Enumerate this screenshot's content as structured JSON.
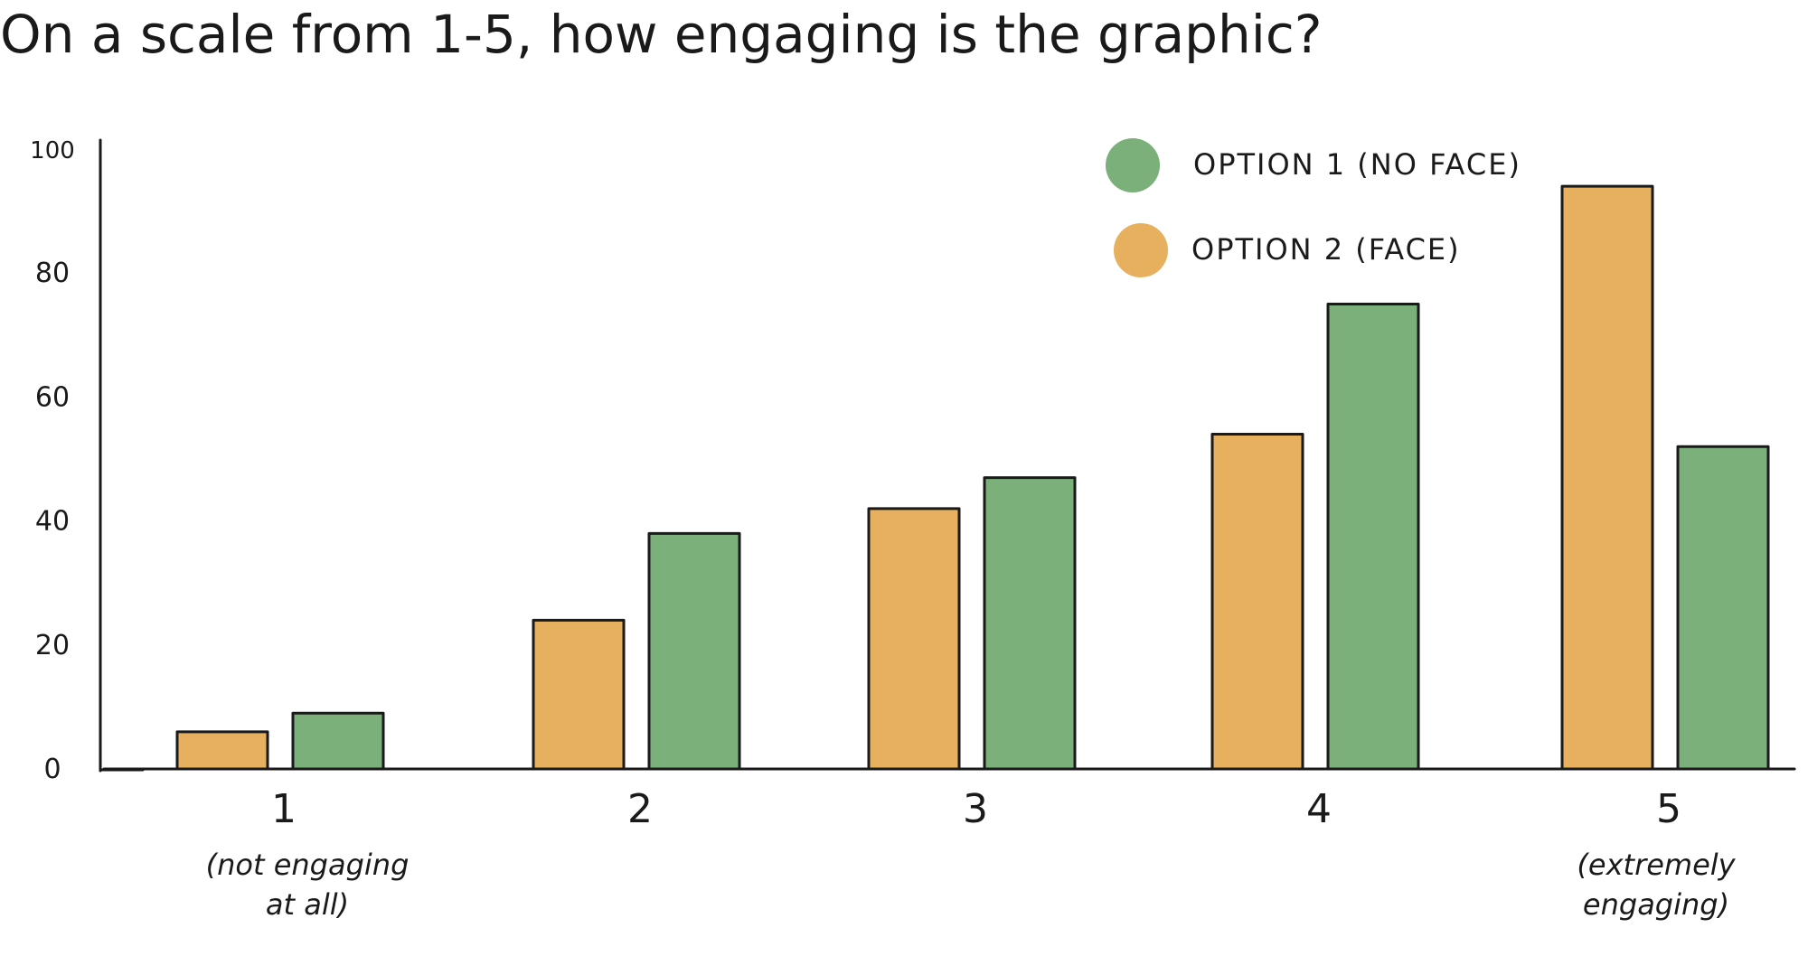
{
  "title": "On a scale from 1-5, how engaging is the graphic?",
  "chart_data": {
    "type": "bar",
    "title": "On a scale from 1-5, how engaging is the graphic?",
    "xlabel": "",
    "ylabel": "",
    "ylim": [
      0,
      100
    ],
    "yticks": [
      "0",
      "20",
      "40",
      "60",
      "80",
      "100"
    ],
    "grid": false,
    "legend_position": "top-right",
    "categories": [
      "1",
      "2",
      "3",
      "4",
      "5"
    ],
    "category_notes": {
      "1": "(not engaging at all)",
      "5": "(extremely engaging)"
    },
    "series": [
      {
        "name": "OPTION 2 (FACE)",
        "color": "#E6B05E",
        "values": [
          6,
          24,
          42,
          54,
          94
        ]
      },
      {
        "name": "OPTION 1 (NO FACE)",
        "color": "#7BB07A",
        "values": [
          9,
          38,
          47,
          75,
          52
        ]
      }
    ],
    "legend": [
      {
        "label": "OPTION 1 (NO FACE)",
        "color": "#7BB07A"
      },
      {
        "label": "OPTION 2 (FACE)",
        "color": "#E6B05E"
      }
    ]
  }
}
